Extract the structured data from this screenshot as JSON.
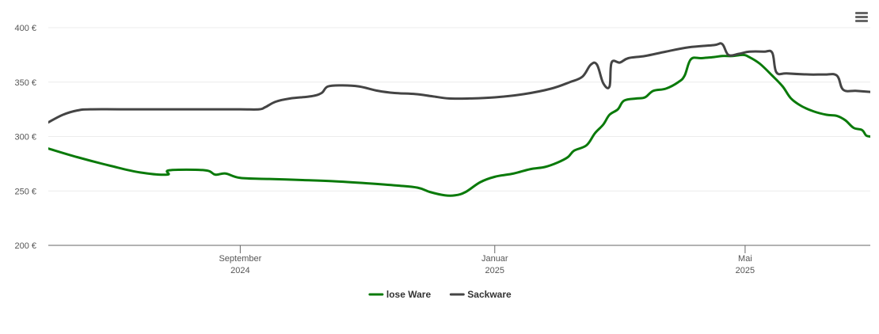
{
  "menu": {
    "icon": "hamburger-menu-icon"
  },
  "chart_data": {
    "type": "line",
    "title": "",
    "xlabel": "",
    "ylabel": "",
    "ylim": [
      200,
      400
    ],
    "y_ticks": [
      {
        "value": 200,
        "label": "200 €"
      },
      {
        "value": 250,
        "label": "250 €"
      },
      {
        "value": 300,
        "label": "300 €"
      },
      {
        "value": 350,
        "label": "350 €"
      },
      {
        "value": 400,
        "label": "400 €"
      }
    ],
    "xlim": [
      "2024-06-01",
      "2025-06-30"
    ],
    "x_ticks": [
      {
        "date": "2024-09-01",
        "label_line1": "September",
        "label_line2": "2024"
      },
      {
        "date": "2025-01-01",
        "label_line1": "Januar",
        "label_line2": "2025"
      },
      {
        "date": "2025-05-01",
        "label_line1": "Mai",
        "label_line2": "2025"
      }
    ],
    "grid": true,
    "legend_position": "bottom-center",
    "series": [
      {
        "name": "lose Ware",
        "color": "#0a7a0a",
        "points": [
          [
            "2024-06-01",
            289
          ],
          [
            "2024-06-15",
            281
          ],
          [
            "2024-07-01",
            273
          ],
          [
            "2024-07-15",
            267
          ],
          [
            "2024-07-28",
            265
          ],
          [
            "2024-07-29",
            269
          ],
          [
            "2024-08-15",
            269
          ],
          [
            "2024-08-20",
            265
          ],
          [
            "2024-08-25",
            266
          ],
          [
            "2024-09-01",
            262
          ],
          [
            "2024-09-15",
            261
          ],
          [
            "2024-10-01",
            260
          ],
          [
            "2024-10-15",
            259
          ],
          [
            "2024-11-01",
            257
          ],
          [
            "2024-11-15",
            255
          ],
          [
            "2024-11-25",
            253
          ],
          [
            "2024-12-01",
            249
          ],
          [
            "2024-12-08",
            246
          ],
          [
            "2024-12-13",
            246
          ],
          [
            "2024-12-18",
            249
          ],
          [
            "2024-12-25",
            258
          ],
          [
            "2025-01-01",
            263
          ],
          [
            "2025-01-10",
            266
          ],
          [
            "2025-01-18",
            270
          ],
          [
            "2025-01-25",
            272
          ],
          [
            "2025-01-31",
            276
          ],
          [
            "2025-02-05",
            281
          ],
          [
            "2025-02-08",
            287
          ],
          [
            "2025-02-14",
            292
          ],
          [
            "2025-02-18",
            303
          ],
          [
            "2025-02-22",
            311
          ],
          [
            "2025-02-25",
            320
          ],
          [
            "2025-03-01",
            325
          ],
          [
            "2025-03-04",
            333
          ],
          [
            "2025-03-10",
            335
          ],
          [
            "2025-03-14",
            336
          ],
          [
            "2025-03-18",
            342
          ],
          [
            "2025-03-24",
            344
          ],
          [
            "2025-03-30",
            350
          ],
          [
            "2025-04-02",
            356
          ],
          [
            "2025-04-05",
            371
          ],
          [
            "2025-04-10",
            372
          ],
          [
            "2025-04-16",
            373
          ],
          [
            "2025-04-20",
            374
          ],
          [
            "2025-04-25",
            374
          ],
          [
            "2025-04-30",
            375
          ],
          [
            "2025-05-03",
            373
          ],
          [
            "2025-05-08",
            367
          ],
          [
            "2025-05-14",
            356
          ],
          [
            "2025-05-19",
            346
          ],
          [
            "2025-05-23",
            335
          ],
          [
            "2025-05-28",
            328
          ],
          [
            "2025-06-03",
            323
          ],
          [
            "2025-06-09",
            320
          ],
          [
            "2025-06-14",
            319
          ],
          [
            "2025-06-18",
            315
          ],
          [
            "2025-06-22",
            308
          ],
          [
            "2025-06-26",
            306
          ],
          [
            "2025-06-28",
            301
          ],
          [
            "2025-06-30",
            300
          ]
        ]
      },
      {
        "name": "Sackware",
        "color": "#444444",
        "points": [
          [
            "2024-06-01",
            313
          ],
          [
            "2024-06-08",
            320
          ],
          [
            "2024-06-15",
            324
          ],
          [
            "2024-06-22",
            325
          ],
          [
            "2024-07-15",
            325
          ],
          [
            "2024-08-15",
            325
          ],
          [
            "2024-09-01",
            325
          ],
          [
            "2024-09-10",
            325
          ],
          [
            "2024-09-13",
            327
          ],
          [
            "2024-09-18",
            332
          ],
          [
            "2024-09-25",
            335
          ],
          [
            "2024-10-05",
            337
          ],
          [
            "2024-10-10",
            340
          ],
          [
            "2024-10-13",
            346
          ],
          [
            "2024-10-20",
            347
          ],
          [
            "2024-10-28",
            346
          ],
          [
            "2024-11-06",
            342
          ],
          [
            "2024-11-14",
            340
          ],
          [
            "2024-11-24",
            339
          ],
          [
            "2024-12-02",
            337
          ],
          [
            "2024-12-10",
            335
          ],
          [
            "2024-12-20",
            335
          ],
          [
            "2025-01-01",
            336
          ],
          [
            "2025-01-15",
            339
          ],
          [
            "2025-01-28",
            344
          ],
          [
            "2025-02-06",
            350
          ],
          [
            "2025-02-12",
            355
          ],
          [
            "2025-02-16",
            366
          ],
          [
            "2025-02-19",
            366
          ],
          [
            "2025-02-22",
            349
          ],
          [
            "2025-02-25",
            346
          ],
          [
            "2025-02-26",
            368
          ],
          [
            "2025-03-02",
            368
          ],
          [
            "2025-03-06",
            372
          ],
          [
            "2025-03-14",
            374
          ],
          [
            "2025-03-24",
            378
          ],
          [
            "2025-04-04",
            382
          ],
          [
            "2025-04-16",
            384
          ],
          [
            "2025-04-20",
            385
          ],
          [
            "2025-04-23",
            375
          ],
          [
            "2025-04-28",
            376
          ],
          [
            "2025-05-03",
            378
          ],
          [
            "2025-05-10",
            378
          ],
          [
            "2025-05-14",
            377
          ],
          [
            "2025-05-16",
            359
          ],
          [
            "2025-05-21",
            358
          ],
          [
            "2025-06-01",
            357
          ],
          [
            "2025-06-08",
            357
          ],
          [
            "2025-06-14",
            356
          ],
          [
            "2025-06-17",
            343
          ],
          [
            "2025-06-23",
            342
          ],
          [
            "2025-06-30",
            341
          ]
        ]
      }
    ]
  }
}
